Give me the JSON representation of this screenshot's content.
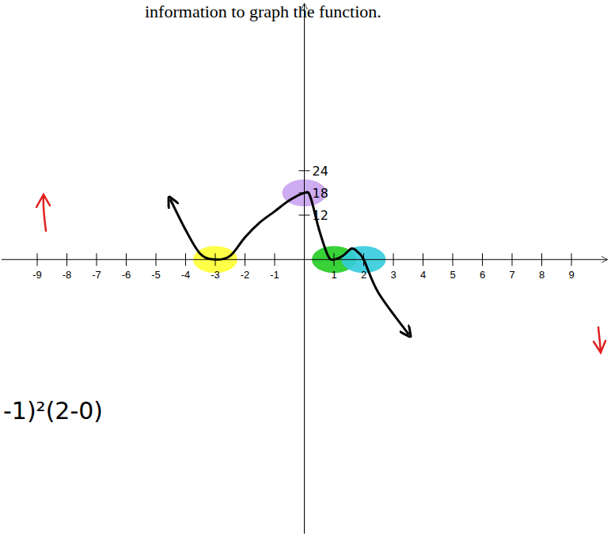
{
  "chart_data": {
    "type": "line",
    "annotations": [
      "information to graph the function.",
      "-1)²(2-0)"
    ],
    "x": [
      -4.5,
      -4,
      -3.5,
      -3,
      -2.5,
      -2,
      -1.5,
      -1,
      -0.5,
      0,
      0.2,
      0.5,
      0.8,
      1,
      1.3,
      1.6,
      1.8,
      2,
      2.5,
      3.5
    ],
    "values": [
      16,
      8,
      1.5,
      0,
      1,
      6,
      10,
      13,
      16,
      18,
      17,
      8,
      1,
      0,
      1,
      3,
      2,
      0,
      -9,
      -20
    ],
    "color": "#000000",
    "xlim": [
      -10.2,
      10.2
    ],
    "ylim": [
      -74,
      69
    ],
    "xticks": [
      -9,
      -8,
      -7,
      -6,
      -5,
      -4,
      -3,
      -2,
      -1,
      1,
      2,
      3,
      4,
      5,
      6,
      7,
      8,
      9
    ],
    "yticks": [
      12,
      18,
      24
    ],
    "highlights": [
      {
        "x": -3,
        "y": 0,
        "color": "#ffff33"
      },
      {
        "x": 0,
        "y": 18,
        "color": "#c9a3f0"
      },
      {
        "x": 1,
        "y": 0,
        "color": "#22cc22"
      },
      {
        "x": 2,
        "y": 0,
        "color": "#33ccdd"
      }
    ]
  }
}
